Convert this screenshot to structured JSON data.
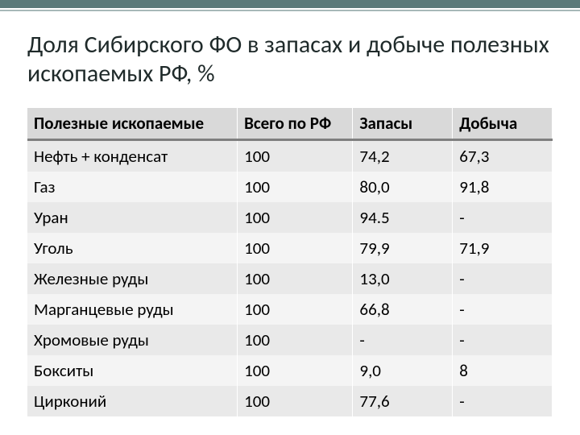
{
  "slide": {
    "title": "Доля Сибирского ФО в запасах и добыче полезных ископаемых РФ, %"
  },
  "table": {
    "columns": [
      "Полезные ископаемые",
      "Всего по РФ",
      "Запасы",
      "Добыча"
    ],
    "rows": [
      [
        "Нефть + конденсат",
        "100",
        "74,2",
        "67,3"
      ],
      [
        "Газ",
        "100",
        "80,0",
        "91,8"
      ],
      [
        "Уран",
        "100",
        "94.5",
        "-"
      ],
      [
        "Уголь",
        "100",
        "79,9",
        "71,9"
      ],
      [
        "Железные руды",
        "100",
        "13,0",
        "-"
      ],
      [
        "Марганцевые руды",
        "100",
        "66,8",
        "-"
      ],
      [
        "Хромовые руды",
        "100",
        "-",
        "-"
      ],
      [
        "Бокситы",
        "100",
        "9,0",
        "8"
      ],
      [
        "Цирконий",
        "100",
        "77,6",
        "-"
      ]
    ],
    "column_widths_pct": [
      40,
      22,
      19,
      19
    ],
    "header_bg": "#d9d9d9",
    "header_border": "#7f7f7f",
    "row_odd_bg": "#e9e9e9",
    "row_even_bg": "#f4f4f4",
    "font_size_pt": 16,
    "title_font_size_pt": 22,
    "text_color": "#000000",
    "background_color": "#ffffff",
    "accent_bar_color": "#5b7a7a",
    "accent_line_color": "#a7b8b8"
  }
}
